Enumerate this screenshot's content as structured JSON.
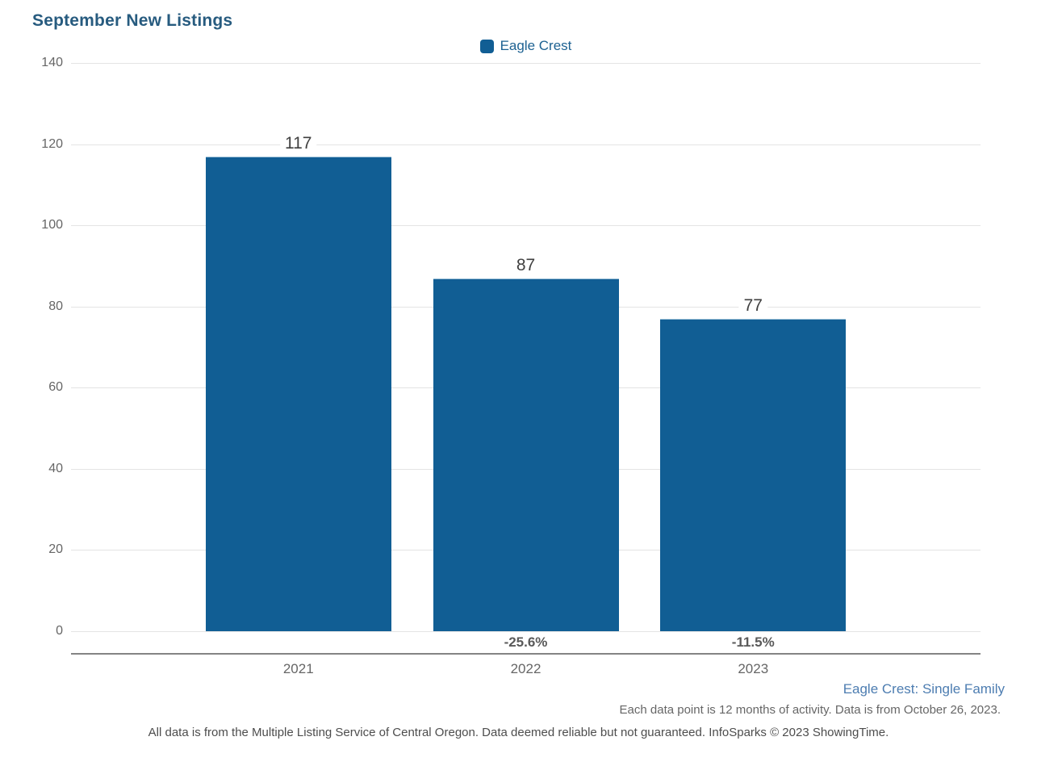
{
  "title": "September New Listings",
  "legend": {
    "label": "Eagle Crest"
  },
  "colors": {
    "bar": "#115e94",
    "title_text": "#275b7f",
    "legend_text": "#1e6292",
    "axis_labels": "#666666",
    "value_labels": "#404040",
    "pct_labels": "#595959",
    "gridline": "#e4e4e4",
    "axis_line": "#848484",
    "series_note_text": "#4d7db1",
    "disclaimer_text": "#4d4d4d"
  },
  "chart_data": {
    "type": "bar",
    "title": "September New Listings",
    "categories": [
      "2021",
      "2022",
      "2023"
    ],
    "series": [
      {
        "name": "Eagle Crest",
        "values": [
          117,
          87,
          77
        ],
        "color": "#115e94"
      }
    ],
    "value_labels": [
      "117",
      "87",
      "77"
    ],
    "pct_change_labels": [
      "",
      "-25.6%",
      "-11.5%"
    ],
    "xlabel": "",
    "ylabel": "",
    "ylim": [
      0,
      140
    ],
    "yticks": [
      0,
      20,
      40,
      60,
      80,
      100,
      120,
      140
    ],
    "grid": true,
    "legend_position": "top-center"
  },
  "footer": {
    "series_note": "Eagle Crest: Single Family",
    "data_note": "Each data point is 12 months of activity. Data is from October 26, 2023.",
    "disclaimer": "All data is from the Multiple Listing Service of Central Oregon. Data deemed reliable but not guaranteed. InfoSparks © 2023 ShowingTime."
  }
}
